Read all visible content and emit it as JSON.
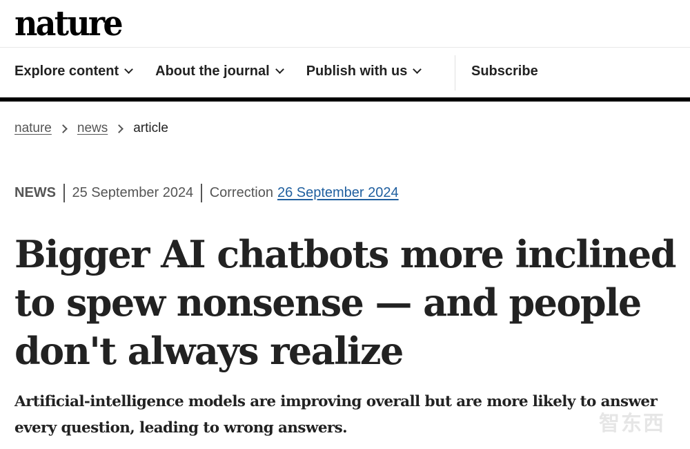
{
  "logo": "nature",
  "nav": {
    "items": [
      {
        "label": "Explore content"
      },
      {
        "label": "About the journal"
      },
      {
        "label": "Publish with us"
      }
    ],
    "subscribe": "Subscribe"
  },
  "breadcrumb": [
    "nature",
    "news",
    "article"
  ],
  "meta": {
    "type": "NEWS",
    "published": "25 September 2024",
    "correction_label": "Correction",
    "correction_date": "26 September 2024"
  },
  "article": {
    "title": "Bigger AI chatbots more inclined to spew nonsense — and people don't always realize",
    "standfirst": "Artificial-intelligence models are improving overall but are more likely to answer every question, leading to wrong answers."
  },
  "watermark": "智东西"
}
